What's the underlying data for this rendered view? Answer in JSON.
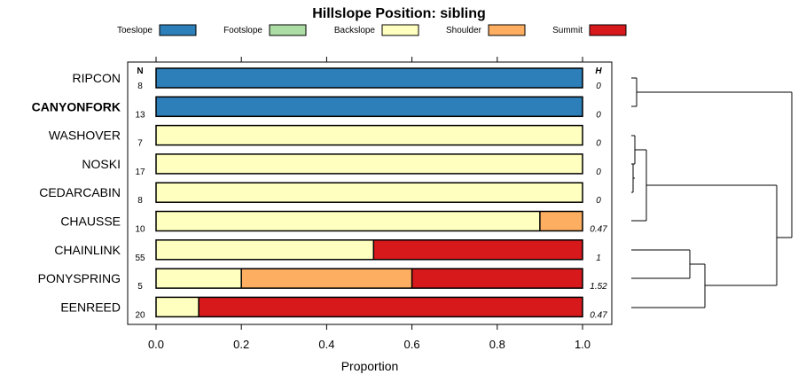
{
  "chart_data": {
    "type": "bar",
    "orientation": "horizontal-stacked",
    "title": "Hillslope Position: sibling",
    "xlabel": "Proportion",
    "xlim": [
      0,
      1
    ],
    "x_ticks": [
      "0.0",
      "0.2",
      "0.4",
      "0.6",
      "0.8",
      "1.0"
    ],
    "n_header": "N",
    "h_header": "H",
    "legend_placement": "top",
    "categories": [
      "Toeslope",
      "Footslope",
      "Backslope",
      "Shoulder",
      "Summit"
    ],
    "colors": [
      "#2c7fb8",
      "#abdda4",
      "#ffffbf",
      "#fdae61",
      "#d7191c"
    ],
    "rows": [
      {
        "label": "RIPCON",
        "bold": false,
        "n": "8",
        "h": "0",
        "values": [
          1,
          0,
          0,
          0,
          0
        ]
      },
      {
        "label": "CANYONFORK",
        "bold": true,
        "n": "13",
        "h": "0",
        "values": [
          1,
          0,
          0,
          0,
          0
        ]
      },
      {
        "label": "WASHOVER",
        "bold": false,
        "n": "7",
        "h": "0",
        "values": [
          0,
          0,
          1,
          0,
          0
        ]
      },
      {
        "label": "NOSKI",
        "bold": false,
        "n": "17",
        "h": "0",
        "values": [
          0,
          0,
          1,
          0,
          0
        ]
      },
      {
        "label": "CEDARCABIN",
        "bold": false,
        "n": "8",
        "h": "0",
        "values": [
          0,
          0,
          1,
          0,
          0
        ]
      },
      {
        "label": "CHAUSSE",
        "bold": false,
        "n": "10",
        "h": "0.47",
        "values": [
          0,
          0,
          0.9,
          0.1,
          0
        ]
      },
      {
        "label": "CHAINLINK",
        "bold": false,
        "n": "55",
        "h": "1",
        "values": [
          0,
          0,
          0.51,
          0,
          0.49
        ]
      },
      {
        "label": "PONYSPRING",
        "bold": false,
        "n": "5",
        "h": "1.52",
        "values": [
          0,
          0,
          0.2,
          0.4,
          0.4
        ]
      },
      {
        "label": "EENREED",
        "bold": false,
        "n": "20",
        "h": "0.47",
        "values": [
          0,
          0,
          0.1,
          0,
          0.9
        ]
      }
    ]
  }
}
